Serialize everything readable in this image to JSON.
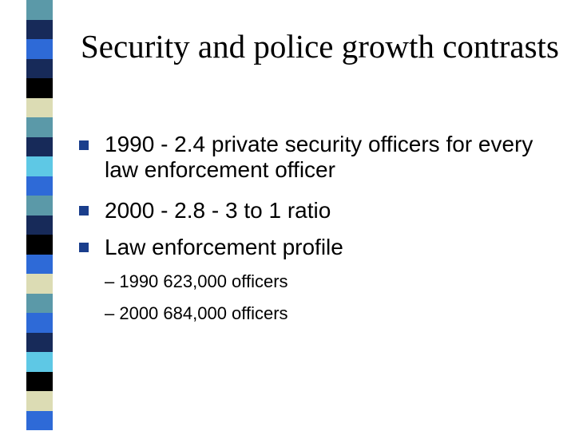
{
  "slide": {
    "title": "Security and police growth contrasts",
    "bullets": [
      "1990 - 2.4 private security officers for every law enforcement officer",
      "2000 - 2.8 - 3 to 1 ratio",
      "Law enforcement profile"
    ],
    "sub_bullets": [
      "– 1990 623,000 officers",
      "– 2000 684,000 officers"
    ]
  },
  "colors": {
    "bullet_marker": "#1a3e8c",
    "stripe_palette": [
      "#5b99a8",
      "#172a59",
      "#2e6ad7",
      "#000000",
      "#dcdcb4",
      "#5ec8e5"
    ]
  }
}
